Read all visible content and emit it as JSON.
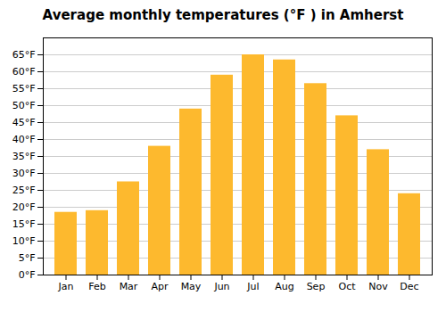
{
  "chart_data": {
    "type": "bar",
    "title": "Average monthly temperatures (°F ) in Amherst",
    "categories": [
      "Jan",
      "Feb",
      "Mar",
      "Apr",
      "May",
      "Jun",
      "Jul",
      "Aug",
      "Sep",
      "Oct",
      "Nov",
      "Dec"
    ],
    "values": [
      18.5,
      19.0,
      27.5,
      38.0,
      49.0,
      59.0,
      65.0,
      63.5,
      56.5,
      47.0,
      37.0,
      24.0
    ],
    "color": "#FDB92E",
    "ylim": [
      0,
      70
    ],
    "yticks": [
      {
        "value": 0,
        "label": "0°F"
      },
      {
        "value": 5,
        "label": "5°F"
      },
      {
        "value": 10,
        "label": "10°F"
      },
      {
        "value": 15,
        "label": "15°F"
      },
      {
        "value": 20,
        "label": "20°F"
      },
      {
        "value": 25,
        "label": "25°F"
      },
      {
        "value": 30,
        "label": "30°F"
      },
      {
        "value": 35,
        "label": "35°F"
      },
      {
        "value": 40,
        "label": "40°F"
      },
      {
        "value": 45,
        "label": "45°F"
      },
      {
        "value": 50,
        "label": "50°F"
      },
      {
        "value": 55,
        "label": "55°F"
      },
      {
        "value": 60,
        "label": "60°F"
      },
      {
        "value": 65,
        "label": "65°F"
      }
    ],
    "grid": true
  }
}
